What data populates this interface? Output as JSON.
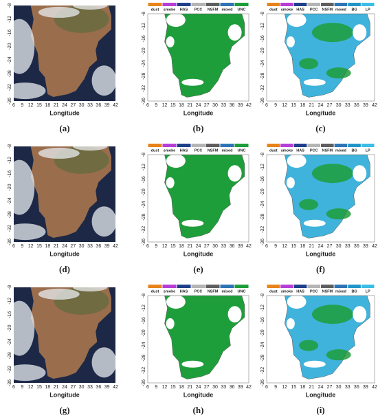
{
  "axes": {
    "xticks": [
      "6",
      "9",
      "12",
      "15",
      "18",
      "21",
      "24",
      "27",
      "30",
      "33",
      "36",
      "39",
      "42"
    ],
    "yticks": [
      "-8",
      "-12",
      "-16",
      "-20",
      "-24",
      "-28",
      "-32",
      "-36"
    ],
    "xlabel": "Longitude"
  },
  "legends": {
    "unc": [
      {
        "name": "dust",
        "color": "#e8841a"
      },
      {
        "name": "smoke",
        "color": "#b63fd6"
      },
      {
        "name": "HAS",
        "color": "#1f3f8a"
      },
      {
        "name": "PCC",
        "color": "#b5b5b5"
      },
      {
        "name": "NSFM",
        "color": "#5f5f5f"
      },
      {
        "name": "mixed",
        "color": "#2e75b6"
      },
      {
        "name": "UNC",
        "color": "#1e9e3a"
      }
    ],
    "lp": [
      {
        "name": "dust",
        "color": "#e8841a"
      },
      {
        "name": "smoke",
        "color": "#b63fd6"
      },
      {
        "name": "HAS",
        "color": "#1f3f8a"
      },
      {
        "name": "PCC",
        "color": "#b5b5b5"
      },
      {
        "name": "NSFM",
        "color": "#5f5f5f"
      },
      {
        "name": "mixed",
        "color": "#2e75b6"
      },
      {
        "name": "BG",
        "color": "#2196c8"
      },
      {
        "name": "LP",
        "color": "#3cbde8"
      }
    ]
  },
  "panels": [
    "(a)",
    "(b)",
    "(c)",
    "(d)",
    "(e)",
    "(f)",
    "(g)",
    "(h)",
    "(i)"
  ]
}
